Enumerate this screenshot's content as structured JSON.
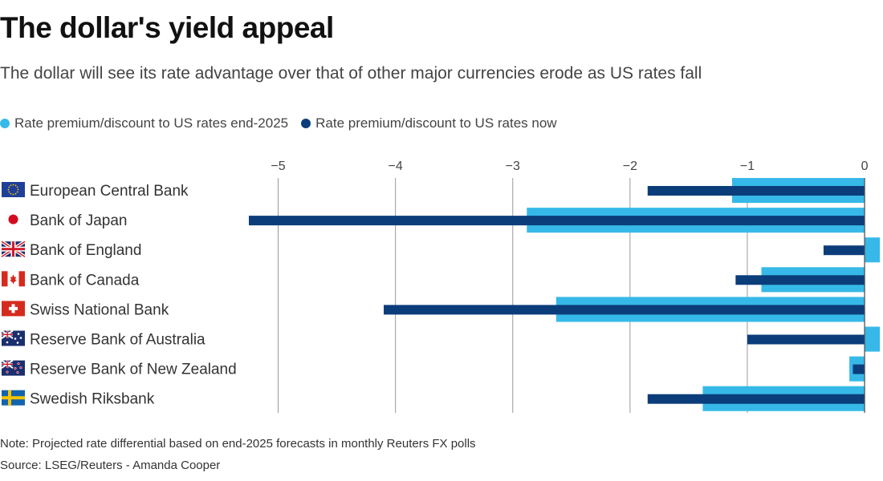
{
  "header": {
    "title": "The dollar's yield appeal",
    "subtitle": "The dollar will see its rate advantage over that of other major currencies erode as US rates fall"
  },
  "footer": {
    "note": "Note: Projected rate differential based on end-2025 forecasts in monthly Reuters FX polls",
    "source": "Source: LSEG/Reuters - Amanda Cooper"
  },
  "colors": {
    "end2025": "#36b9e8",
    "now": "#0b3d7a",
    "grid": "#9a9a9a",
    "axis": "#444444"
  },
  "chart_data": {
    "type": "bar",
    "orientation": "horizontal",
    "title": "The dollar's yield appeal",
    "xlim": [
      -5.25,
      0.15
    ],
    "ticks": [
      -5,
      -4,
      -3,
      -2,
      -1,
      0
    ],
    "tick_labels": [
      "−5",
      "−4",
      "−3",
      "−2",
      "−1",
      "0"
    ],
    "grid": true,
    "legend_position": "top-left",
    "categories": [
      {
        "label": "European Central Bank",
        "flag": "eu-flag-icon"
      },
      {
        "label": "Bank of Japan",
        "flag": "japan-flag-icon"
      },
      {
        "label": "Bank of England",
        "flag": "uk-flag-icon"
      },
      {
        "label": "Bank of Canada",
        "flag": "canada-flag-icon"
      },
      {
        "label": "Swiss National Bank",
        "flag": "switzerland-flag-icon"
      },
      {
        "label": "Reserve Bank of Australia",
        "flag": "australia-flag-icon"
      },
      {
        "label": "Reserve Bank of New Zealand",
        "flag": "new-zealand-flag-icon"
      },
      {
        "label": "Swedish Riksbank",
        "flag": "sweden-flag-icon"
      }
    ],
    "series": [
      {
        "name": "Rate premium/discount to US rates end-2025",
        "key": "end2025",
        "values": [
          -1.13,
          -2.88,
          0.13,
          -0.88,
          -2.63,
          0.13,
          -0.13,
          -1.38
        ]
      },
      {
        "name": "Rate premium/discount to US rates now",
        "key": "now",
        "values": [
          -1.85,
          -5.25,
          -0.35,
          -1.1,
          -4.1,
          -1.0,
          -0.1,
          -1.85
        ]
      }
    ]
  }
}
